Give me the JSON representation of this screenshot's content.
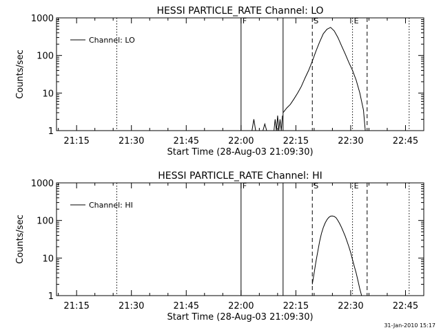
{
  "footer": {
    "timestamp": "31-Jan-2010 15:17"
  },
  "chart_data": [
    {
      "type": "line",
      "title": "HESSI PARTICLE_RATE Channel: LO",
      "xlabel": "Start Time (28-Aug-03 21:09:30)",
      "ylabel": "Counts/sec",
      "yscale": "log",
      "xlim": [
        "21:09:30",
        "22:50:00"
      ],
      "ylim": [
        1,
        1000
      ],
      "xticks": [
        "21:15",
        "21:30",
        "21:45",
        "22:00",
        "22:15",
        "22:30",
        "22:45"
      ],
      "yticks": [
        "1",
        "10",
        "100",
        "1000"
      ],
      "legend": {
        "position": "top-left",
        "entries": [
          "Channel: LO"
        ]
      },
      "markers": [
        {
          "time": "21:26:00",
          "style": "dotted",
          "label": ""
        },
        {
          "time": "22:00:00",
          "style": "solid",
          "label": "F"
        },
        {
          "time": "22:11:30",
          "style": "solid",
          "label": ""
        },
        {
          "time": "22:19:30",
          "style": "dashed",
          "label": "S"
        },
        {
          "time": "22:30:30",
          "style": "dotted",
          "label": "E"
        },
        {
          "time": "22:34:30",
          "style": "dashed",
          "label": ""
        },
        {
          "time": "22:46:00",
          "style": "dotted",
          "label": ""
        }
      ],
      "series": [
        {
          "name": "Channel: LO",
          "segments": [
            {
              "x": [
                "22:03:00",
                "22:03:30",
                "22:04:00"
              ],
              "y": [
                1,
                2,
                1
              ]
            },
            {
              "x": [
                "22:06:00",
                "22:06:30",
                "22:07:00"
              ],
              "y": [
                1,
                1.5,
                1
              ]
            },
            {
              "x": [
                "22:09:00",
                "22:09:20",
                "22:09:40",
                "22:10:00",
                "22:10:20",
                "22:10:40",
                "22:11:00",
                "22:11:20"
              ],
              "y": [
                1,
                2,
                1,
                2.5,
                1,
                2,
                1,
                2.5
              ]
            },
            {
              "x": [
                "22:11:30",
                "22:12:30",
                "22:13:30",
                "22:14:30",
                "22:15:30",
                "22:16:30",
                "22:17:30",
                "22:18:30",
                "22:19:30",
                "22:20:30",
                "22:21:30",
                "22:22:30",
                "22:23:30",
                "22:24:30",
                "22:25:30",
                "22:26:30",
                "22:27:30",
                "22:28:30",
                "22:29:30",
                "22:30:30",
                "22:31:30",
                "22:32:30",
                "22:33:30",
                "22:34:00"
              ],
              "y": [
                3,
                4,
                5,
                7,
                10,
                15,
                25,
                40,
                70,
                130,
                230,
                380,
                500,
                560,
                450,
                300,
                180,
                110,
                65,
                40,
                22,
                10,
                3.5,
                1
              ]
            }
          ]
        }
      ]
    },
    {
      "type": "line",
      "title": "HESSI PARTICLE_RATE Channel: HI",
      "xlabel": "Start Time (28-Aug-03 21:09:30)",
      "ylabel": "Counts/sec",
      "yscale": "log",
      "xlim": [
        "21:09:30",
        "22:50:00"
      ],
      "ylim": [
        1,
        1000
      ],
      "xticks": [
        "21:15",
        "21:30",
        "21:45",
        "22:00",
        "22:15",
        "22:30",
        "22:45"
      ],
      "yticks": [
        "1",
        "10",
        "100",
        "1000"
      ],
      "legend": {
        "position": "top-left",
        "entries": [
          "Channel: HI"
        ]
      },
      "markers": [
        {
          "time": "21:26:00",
          "style": "dotted",
          "label": ""
        },
        {
          "time": "22:00:00",
          "style": "solid",
          "label": "F"
        },
        {
          "time": "22:11:30",
          "style": "solid",
          "label": ""
        },
        {
          "time": "22:19:30",
          "style": "dashed",
          "label": "S"
        },
        {
          "time": "22:30:30",
          "style": "dotted",
          "label": "E"
        },
        {
          "time": "22:34:30",
          "style": "dashed",
          "label": ""
        },
        {
          "time": "22:46:00",
          "style": "dotted",
          "label": ""
        }
      ],
      "series": [
        {
          "name": "Channel: HI",
          "segments": [
            {
              "x": [
                "22:19:30",
                "22:20:00",
                "22:20:30",
                "22:21:00",
                "22:21:30",
                "22:22:00",
                "22:22:30",
                "22:23:00",
                "22:23:30",
                "22:24:00",
                "22:24:30",
                "22:25:00",
                "22:25:30",
                "22:26:00",
                "22:26:30",
                "22:27:00",
                "22:27:30",
                "22:28:00",
                "22:28:30",
                "22:29:00",
                "22:29:30",
                "22:30:00",
                "22:30:30",
                "22:31:00",
                "22:31:30",
                "22:32:00",
                "22:32:30",
                "22:33:00"
              ],
              "y": [
                2,
                4,
                8,
                15,
                28,
                45,
                65,
                85,
                105,
                120,
                130,
                132,
                128,
                118,
                100,
                82,
                65,
                50,
                38,
                28,
                20,
                14,
                9,
                6,
                4,
                2.5,
                1.5,
                1
              ]
            }
          ]
        }
      ]
    }
  ]
}
